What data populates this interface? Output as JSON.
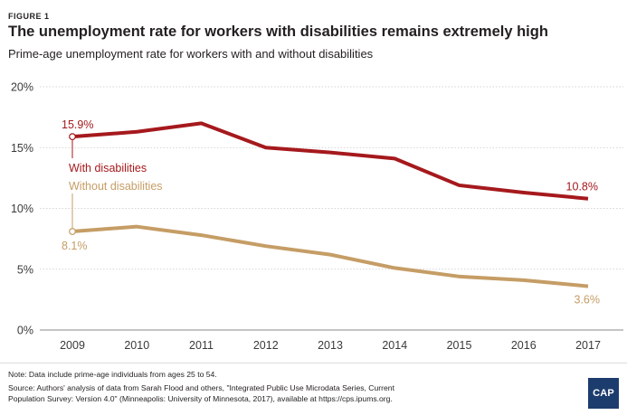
{
  "figure_label": "FIGURE 1",
  "title": "The unemployment rate for workers with disabilities remains extremely high",
  "subtitle": "Prime-age unemployment rate for workers with and without disabilities",
  "note": "Note: Data include prime-age individuals from ages 25 to 54.",
  "source_line1": "Source: Authors' analysis of data from Sarah Flood and others, \"Integrated Public Use Microdata Series, Current",
  "source_line2": "Population Survey: Version 4.0\" (Minneapolis: University of Minnesota, 2017), available at https://cps.ipums.org.",
  "logo_text": "CAP",
  "colors": {
    "with_disabilities": "#a5191d",
    "without_disabilities": "#c59d65",
    "axis_text": "#3a3a3a",
    "gridline": "#c8c8c8",
    "logo_bg": "#1d3c6e"
  },
  "chart_data": {
    "type": "line",
    "x": [
      "2009",
      "2010",
      "2011",
      "2012",
      "2013",
      "2014",
      "2015",
      "2016",
      "2017"
    ],
    "ylim": [
      0,
      20
    ],
    "yticks": [
      0,
      5,
      10,
      15,
      20
    ],
    "ytick_labels": [
      "0%",
      "5%",
      "10%",
      "15%",
      "20%"
    ],
    "grid": true,
    "series": [
      {
        "name": "With disabilities",
        "values": [
          15.9,
          16.3,
          17.0,
          15.0,
          14.6,
          14.1,
          11.9,
          11.3,
          10.8
        ],
        "start_label": "15.9%",
        "end_label": "10.8%"
      },
      {
        "name": "Without disabilities",
        "values": [
          8.1,
          8.5,
          7.8,
          6.9,
          6.2,
          5.1,
          4.4,
          4.1,
          3.6
        ],
        "start_label": "8.1%",
        "end_label": "3.6%"
      }
    ]
  }
}
